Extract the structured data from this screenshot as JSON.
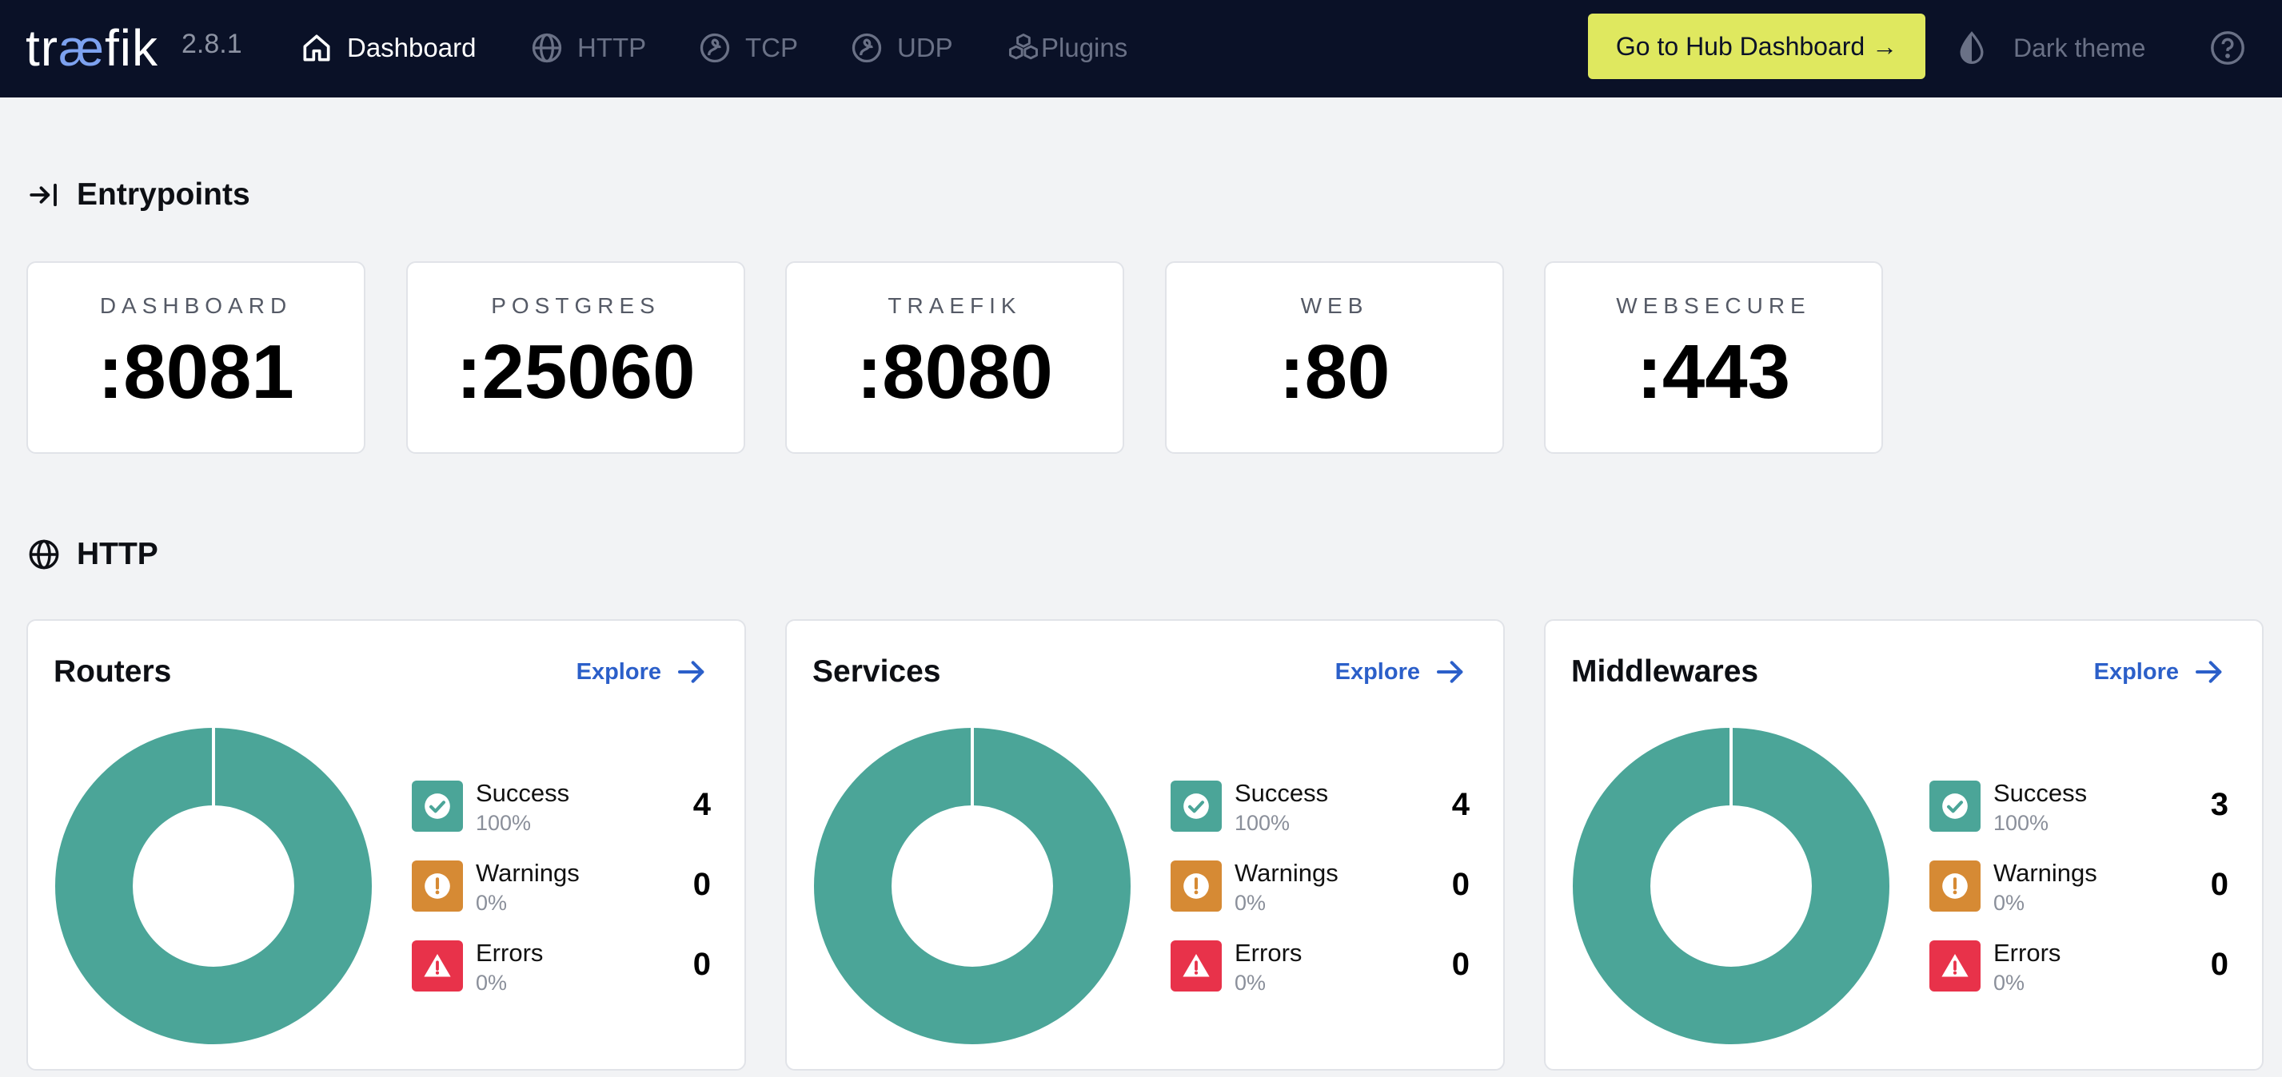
{
  "nav": {
    "logo": {
      "pre": "tr",
      "ae": "æ",
      "post": "fik"
    },
    "version": "2.8.1",
    "items": [
      {
        "label": "Dashboard",
        "icon": "home-icon"
      },
      {
        "label": "HTTP",
        "icon": "globe-icon"
      },
      {
        "label": "TCP",
        "icon": "tcp-icon"
      },
      {
        "label": "UDP",
        "icon": "udp-icon"
      },
      {
        "label": "Plugins",
        "icon": "plugins-icon"
      }
    ],
    "hub_button": "Go to Hub Dashboard →",
    "theme_toggle": "Dark theme"
  },
  "entrypoints": {
    "title": "Entrypoints",
    "items": [
      {
        "name": "DASHBOARD",
        "port": ":8081"
      },
      {
        "name": "POSTGRES",
        "port": ":25060"
      },
      {
        "name": "TRAEFIK",
        "port": ":8080"
      },
      {
        "name": "WEB",
        "port": ":80"
      },
      {
        "name": "WEBSECURE",
        "port": ":443"
      }
    ]
  },
  "http": {
    "title": "HTTP",
    "explore_label": "Explore",
    "cards": [
      {
        "title": "Routers",
        "success": {
          "label": "Success",
          "pct": "100%",
          "count": "4"
        },
        "warnings": {
          "label": "Warnings",
          "pct": "0%",
          "count": "0"
        },
        "errors": {
          "label": "Errors",
          "pct": "0%",
          "count": "0"
        }
      },
      {
        "title": "Services",
        "success": {
          "label": "Success",
          "pct": "100%",
          "count": "4"
        },
        "warnings": {
          "label": "Warnings",
          "pct": "0%",
          "count": "0"
        },
        "errors": {
          "label": "Errors",
          "pct": "0%",
          "count": "0"
        }
      },
      {
        "title": "Middlewares",
        "success": {
          "label": "Success",
          "pct": "100%",
          "count": "3"
        },
        "warnings": {
          "label": "Warnings",
          "pct": "0%",
          "count": "0"
        },
        "errors": {
          "label": "Errors",
          "pct": "0%",
          "count": "0"
        }
      }
    ]
  },
  "colors": {
    "nav_bg": "#0a1127",
    "hub_button": "#dfe85f",
    "success": "#4ba598",
    "warning": "#d68a34",
    "error": "#e8324a",
    "link": "#2b5fc9"
  }
}
